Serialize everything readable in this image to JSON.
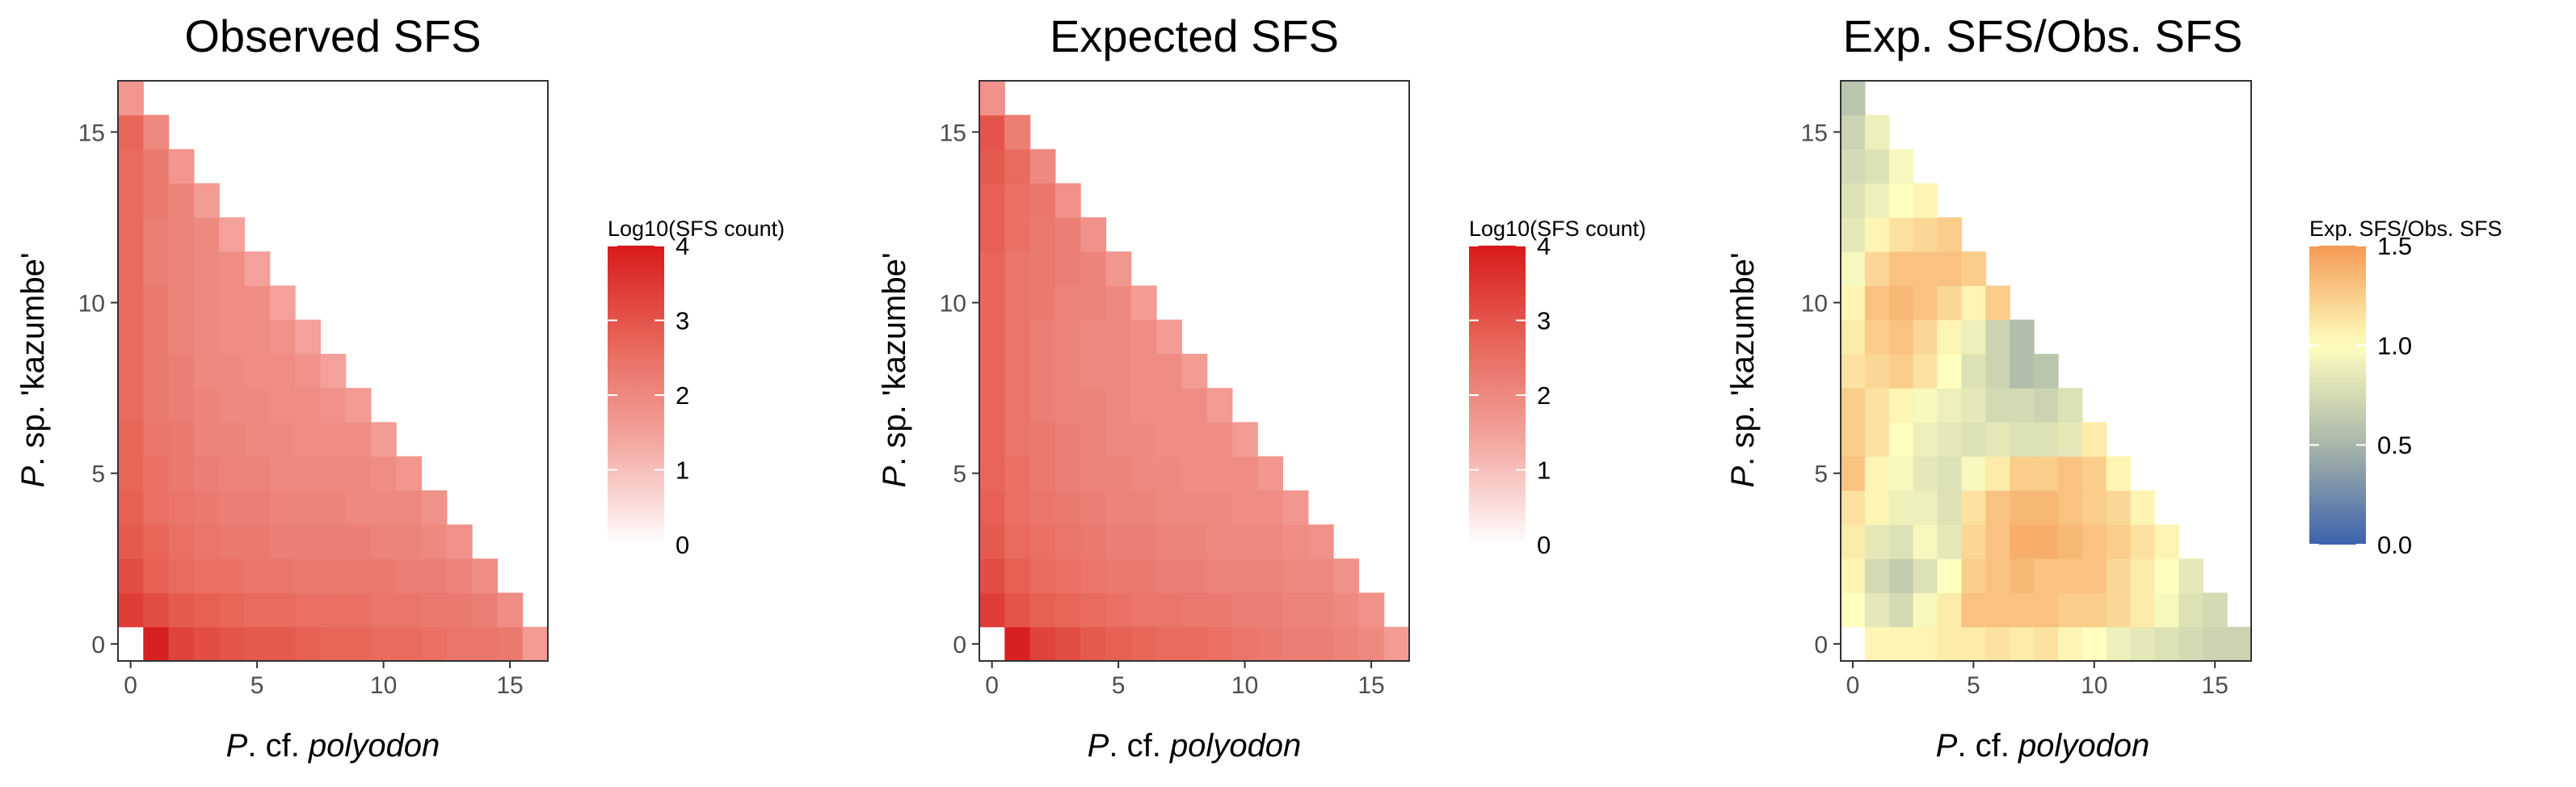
{
  "chart_data": [
    {
      "type": "heatmap",
      "title": "Observed SFS",
      "xlabel": {
        "prefix": "P",
        "rest": ". cf. ",
        "italic": "polyodon"
      },
      "ylabel": {
        "prefix": "P",
        "rest": ". sp. 'kazumbe'"
      },
      "x_ticks": [
        "0",
        "5",
        "10",
        "15"
      ],
      "y_ticks": [
        "0",
        "5",
        "10",
        "15"
      ],
      "xlim": [
        -0.5,
        16.5
      ],
      "ylim": [
        -0.5,
        16.5
      ],
      "legend_title": "Log10(SFS count)",
      "legend_ticks": [
        "0",
        "1",
        "2",
        "3",
        "4"
      ],
      "legend_range": [
        0,
        4
      ],
      "colorscale": [
        "#ffffff",
        "#f4a9a3",
        "#e8685a",
        "#d7191c"
      ],
      "cell_values": [
        [
          null,
          3.9,
          3.3,
          3.1,
          3.0,
          2.9,
          2.9,
          2.8,
          2.7,
          2.7,
          2.6,
          2.6,
          2.5,
          2.4,
          2.4,
          2.3,
          1.6
        ],
        [
          3.4,
          3.1,
          2.9,
          2.8,
          2.7,
          2.6,
          2.6,
          2.5,
          2.5,
          2.5,
          2.4,
          2.4,
          2.3,
          2.3,
          2.2,
          1.9
        ],
        [
          3.1,
          2.8,
          2.6,
          2.5,
          2.5,
          2.4,
          2.4,
          2.3,
          2.3,
          2.3,
          2.3,
          2.2,
          2.2,
          2.1,
          1.9
        ],
        [
          2.9,
          2.7,
          2.5,
          2.4,
          2.3,
          2.3,
          2.2,
          2.2,
          2.2,
          2.2,
          2.1,
          2.1,
          2.0,
          1.8
        ],
        [
          2.8,
          2.5,
          2.4,
          2.3,
          2.2,
          2.2,
          2.1,
          2.1,
          2.1,
          2.0,
          2.0,
          2.0,
          1.8
        ],
        [
          2.7,
          2.5,
          2.3,
          2.2,
          2.1,
          2.1,
          2.0,
          2.0,
          2.0,
          2.0,
          1.9,
          1.7
        ],
        [
          2.7,
          2.4,
          2.3,
          2.1,
          2.1,
          2.0,
          2.0,
          1.9,
          1.9,
          1.9,
          1.6
        ],
        [
          2.6,
          2.3,
          2.2,
          2.1,
          2.0,
          2.0,
          1.9,
          1.9,
          1.8,
          1.6
        ],
        [
          2.6,
          2.3,
          2.2,
          2.0,
          2.0,
          1.9,
          1.9,
          1.8,
          1.5
        ],
        [
          2.6,
          2.3,
          2.1,
          2.0,
          1.9,
          1.9,
          1.8,
          1.5
        ],
        [
          2.6,
          2.3,
          2.1,
          2.0,
          1.9,
          1.9,
          1.5
        ],
        [
          2.6,
          2.2,
          2.1,
          2.0,
          1.9,
          1.5
        ],
        [
          2.6,
          2.2,
          2.1,
          2.0,
          1.5
        ],
        [
          2.6,
          2.3,
          2.1,
          1.6
        ],
        [
          2.6,
          2.3,
          1.7
        ],
        [
          2.7,
          2.0
        ],
        [
          1.7
        ]
      ]
    },
    {
      "type": "heatmap",
      "title": "Expected SFS",
      "xlabel": {
        "prefix": "P",
        "rest": ". cf. ",
        "italic": "polyodon"
      },
      "ylabel": {
        "prefix": "P",
        "rest": ". sp. 'kazumbe'"
      },
      "x_ticks": [
        "0",
        "5",
        "10",
        "15"
      ],
      "y_ticks": [
        "0",
        "5",
        "10",
        "15"
      ],
      "xlim": [
        -0.5,
        16.5
      ],
      "ylim": [
        -0.5,
        16.5
      ],
      "legend_title": "Log10(SFS count)",
      "legend_ticks": [
        "0",
        "1",
        "2",
        "3",
        "4"
      ],
      "legend_range": [
        0,
        4
      ],
      "colorscale": [
        "#ffffff",
        "#f4a9a3",
        "#e8685a",
        "#d7191c"
      ],
      "cell_values": [
        [
          null,
          3.9,
          3.3,
          3.1,
          2.9,
          2.8,
          2.7,
          2.6,
          2.6,
          2.5,
          2.4,
          2.3,
          2.2,
          2.2,
          2.1,
          2.0,
          1.6
        ],
        [
          3.4,
          3.0,
          2.8,
          2.7,
          2.6,
          2.5,
          2.4,
          2.4,
          2.3,
          2.3,
          2.2,
          2.2,
          2.1,
          2.1,
          2.0,
          1.8
        ],
        [
          3.1,
          2.8,
          2.6,
          2.5,
          2.4,
          2.3,
          2.3,
          2.2,
          2.2,
          2.1,
          2.1,
          2.1,
          2.0,
          2.0,
          1.8
        ],
        [
          2.9,
          2.6,
          2.5,
          2.4,
          2.3,
          2.2,
          2.2,
          2.1,
          2.1,
          2.0,
          2.0,
          2.0,
          1.9,
          1.8
        ],
        [
          2.8,
          2.5,
          2.4,
          2.3,
          2.2,
          2.1,
          2.1,
          2.0,
          2.0,
          2.0,
          1.9,
          1.9,
          1.7
        ],
        [
          2.7,
          2.5,
          2.3,
          2.2,
          2.1,
          2.1,
          2.0,
          2.0,
          1.9,
          1.9,
          1.9,
          1.7
        ],
        [
          2.7,
          2.4,
          2.3,
          2.2,
          2.1,
          2.0,
          2.0,
          1.9,
          1.9,
          1.9,
          1.6
        ],
        [
          2.7,
          2.4,
          2.2,
          2.1,
          2.1,
          2.0,
          1.9,
          1.9,
          1.9,
          1.6
        ],
        [
          2.7,
          2.4,
          2.2,
          2.1,
          2.0,
          2.0,
          1.9,
          1.9,
          1.6
        ],
        [
          2.7,
          2.4,
          2.2,
          2.1,
          2.0,
          2.0,
          1.9,
          1.6
        ],
        [
          2.7,
          2.4,
          2.3,
          2.1,
          2.1,
          2.0,
          1.6
        ],
        [
          2.7,
          2.4,
          2.3,
          2.2,
          2.1,
          1.7
        ],
        [
          2.8,
          2.5,
          2.3,
          2.2,
          1.8
        ],
        [
          2.8,
          2.5,
          2.4,
          1.8
        ],
        [
          2.9,
          2.6,
          2.0
        ],
        [
          3.0,
          2.2
        ],
        [
          1.8
        ]
      ]
    },
    {
      "type": "heatmap",
      "title": "Exp. SFS/Obs. SFS",
      "xlabel": {
        "prefix": "P",
        "rest": ". cf. ",
        "italic": "polyodon"
      },
      "ylabel": {
        "prefix": "P",
        "rest": ". sp. 'kazumbe'"
      },
      "x_ticks": [
        "0",
        "5",
        "10",
        "15"
      ],
      "y_ticks": [
        "0",
        "5",
        "10",
        "15"
      ],
      "xlim": [
        -0.5,
        16.5
      ],
      "ylim": [
        -0.5,
        16.5
      ],
      "legend_title": "Exp. SFS/Obs. SFS",
      "legend_ticks": [
        "0.0",
        "0.5",
        "1.0",
        "1.5"
      ],
      "legend_range": [
        0,
        1.5
      ],
      "colorscale": [
        "#3b62ad",
        "#a9b6a9",
        "#ffffbf",
        "#f59a56"
      ],
      "cell_values": [
        [
          null,
          1.05,
          1.05,
          1.05,
          1.1,
          1.1,
          1.15,
          1.1,
          1.15,
          1.05,
          1.0,
          0.9,
          0.85,
          0.8,
          0.75,
          0.7,
          0.7
        ],
        [
          1.0,
          0.85,
          0.75,
          0.95,
          1.1,
          1.3,
          1.3,
          1.3,
          1.3,
          1.25,
          1.25,
          1.2,
          1.1,
          0.95,
          0.8,
          0.75
        ],
        [
          1.05,
          0.75,
          0.65,
          0.8,
          1.0,
          1.25,
          1.3,
          1.35,
          1.3,
          1.3,
          1.3,
          1.2,
          1.1,
          1.0,
          0.85
        ],
        [
          1.1,
          0.85,
          0.8,
          0.95,
          0.85,
          1.2,
          1.3,
          1.4,
          1.4,
          1.35,
          1.3,
          1.25,
          1.15,
          1.05
        ],
        [
          1.15,
          1.05,
          0.9,
          0.9,
          0.8,
          1.15,
          1.3,
          1.35,
          1.35,
          1.3,
          1.25,
          1.2,
          1.05
        ],
        [
          1.3,
          1.05,
          0.95,
          0.85,
          0.8,
          0.95,
          1.1,
          1.25,
          1.25,
          1.3,
          1.25,
          1.05
        ],
        [
          1.25,
          1.15,
          1.0,
          0.9,
          0.85,
          0.8,
          0.85,
          0.8,
          0.8,
          0.85,
          1.1
        ],
        [
          1.25,
          1.15,
          1.05,
          0.95,
          0.9,
          0.85,
          0.75,
          0.75,
          0.7,
          0.8
        ],
        [
          1.15,
          1.2,
          1.25,
          1.15,
          1.0,
          0.8,
          0.7,
          0.55,
          0.6
        ],
        [
          1.1,
          1.25,
          1.3,
          1.2,
          1.05,
          0.9,
          0.7,
          0.55
        ],
        [
          1.05,
          1.3,
          1.35,
          1.3,
          1.2,
          1.05,
          1.25
        ],
        [
          0.95,
          1.2,
          1.3,
          1.3,
          1.3,
          1.25
        ],
        [
          0.85,
          1.05,
          1.15,
          1.2,
          1.25
        ],
        [
          0.8,
          0.9,
          1.0,
          1.05
        ],
        [
          0.75,
          0.8,
          0.95
        ],
        [
          0.7,
          0.9
        ],
        [
          0.6
        ]
      ]
    }
  ]
}
